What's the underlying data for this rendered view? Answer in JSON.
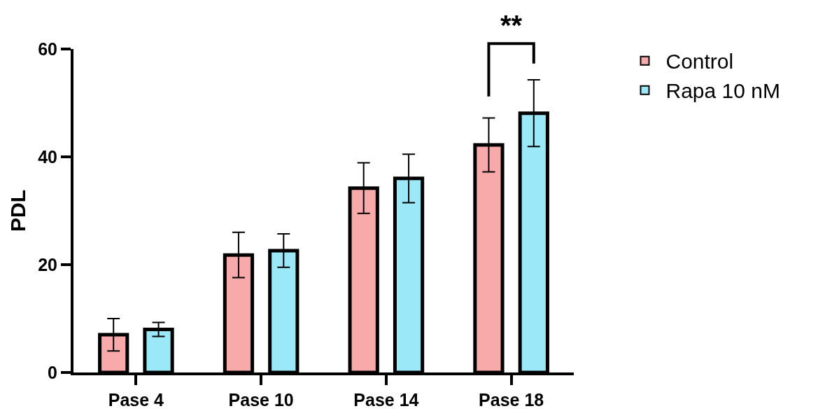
{
  "chart_data": {
    "type": "bar",
    "ylabel": "PDL",
    "categories": [
      "Pase 4",
      "Pase 10",
      "Pase 14",
      "Pase 18"
    ],
    "series": [
      {
        "name": "Control",
        "color": "#f8aaaa",
        "values": [
          7.0,
          21.8,
          34.2,
          42.2
        ],
        "errors": [
          3.0,
          4.2,
          4.7,
          5.0
        ]
      },
      {
        "name": "Rapa 10 nM",
        "color": "#9be8f8",
        "values": [
          8.0,
          22.6,
          36.0,
          48.1
        ],
        "errors": [
          1.3,
          3.1,
          4.5,
          6.2
        ]
      }
    ],
    "ylim": [
      0,
      60
    ],
    "yticks": [
      0,
      20,
      40,
      60
    ],
    "legend": "top right",
    "annotations": [
      "**"
    ]
  }
}
